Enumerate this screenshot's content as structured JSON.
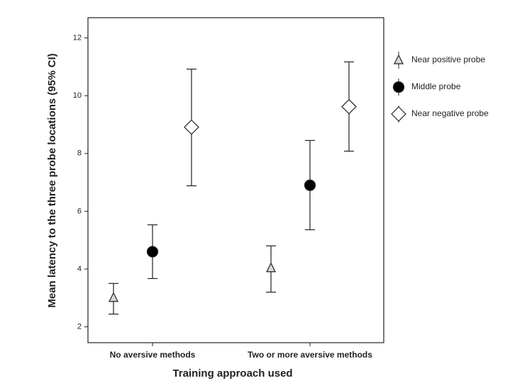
{
  "chart_data": {
    "type": "errorbar",
    "x_label": "Training approach used",
    "y_label": "Mean latency to the three probe locations (95% CI)",
    "categories": [
      "No aversive methods",
      "Two or more aversive methods"
    ],
    "ylim": [
      1.45,
      12.7
    ],
    "yticks": [
      2,
      4,
      6,
      8,
      10,
      12
    ],
    "series": [
      {
        "name": "Near positive probe",
        "marker": "triangle",
        "color": "#d9d9d9",
        "values": [
          3.0,
          4.03
        ],
        "lower": [
          2.44,
          3.2
        ],
        "upper": [
          3.5,
          4.8
        ]
      },
      {
        "name": "Middle probe",
        "marker": "circle",
        "color": "#000000",
        "values": [
          4.6,
          6.9
        ],
        "lower": [
          3.67,
          5.36
        ],
        "upper": [
          5.53,
          8.45
        ]
      },
      {
        "name": "Near negative probe",
        "marker": "diamond",
        "color": "#ffffff",
        "values": [
          8.91,
          9.62
        ],
        "lower": [
          6.88,
          8.08
        ],
        "upper": [
          10.92,
          11.17
        ]
      }
    ]
  }
}
